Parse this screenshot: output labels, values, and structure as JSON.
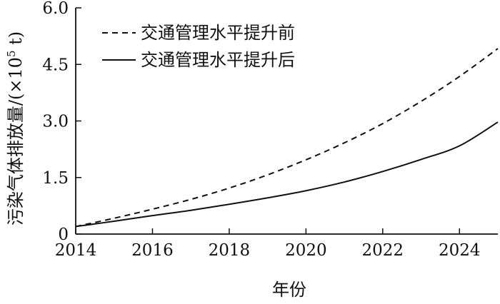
{
  "chart_data": {
    "type": "line",
    "title": "",
    "xlabel": "年份",
    "ylabel": "污染气体排放量/(×10",
    "ylabel_superscript": "5",
    "ylabel_unit_suffix": " t)",
    "xlim": [
      2014,
      2025
    ],
    "ylim": [
      0,
      6.0
    ],
    "x_ticks": [
      "2014",
      "2016",
      "2018",
      "2020",
      "2022",
      "2024"
    ],
    "y_ticks": [
      "0",
      "1.5",
      "3.0",
      "4.5",
      "6.0"
    ],
    "grid": false,
    "legend_position": "top-left",
    "series": [
      {
        "name": "交通管理水平提升前",
        "style": "dashed",
        "color": "#111111",
        "x": [
          2014,
          2015,
          2016,
          2017,
          2018,
          2019,
          2020,
          2021,
          2022,
          2023,
          2024,
          2025
        ],
        "y": [
          0.2,
          0.42,
          0.66,
          0.92,
          1.22,
          1.57,
          1.97,
          2.42,
          2.93,
          3.52,
          4.18,
          4.92
        ]
      },
      {
        "name": "交通管理水平提升后",
        "style": "solid",
        "color": "#111111",
        "x": [
          2014,
          2015,
          2016,
          2017,
          2018,
          2019,
          2020,
          2021,
          2022,
          2023,
          2024,
          2025
        ],
        "y": [
          0.2,
          0.34,
          0.49,
          0.63,
          0.79,
          0.96,
          1.15,
          1.38,
          1.66,
          1.98,
          2.34,
          2.97
        ]
      }
    ]
  }
}
